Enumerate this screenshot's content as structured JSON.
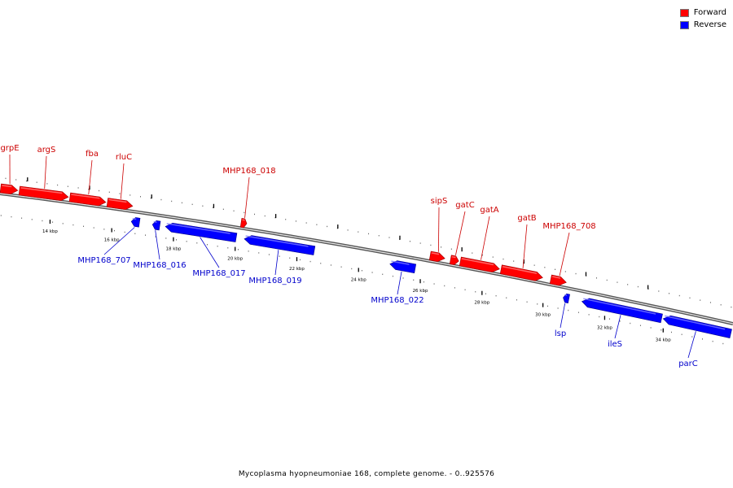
{
  "legend": {
    "forward_label": "Forward",
    "reverse_label": "Reverse",
    "forward_color": "#ff0000",
    "reverse_color": "#0000ff"
  },
  "footer": {
    "caption": "Mycoplasma hyopneumoniae 168, complete genome. - 0..925576"
  },
  "colors": {
    "forward_label": "#cc0000",
    "reverse_label": "#0000cc"
  },
  "map": {
    "kbp_labels": [
      "14 kbp",
      "16 kbp",
      "18 kbp",
      "20 kbp",
      "22 kbp",
      "24 kbp",
      "26 kbp",
      "28 kbp",
      "30 kbp",
      "32 kbp",
      "34 kbp"
    ],
    "forward_genes": [
      "grpE",
      "argS",
      "fba",
      "rluC",
      "MHP168_018",
      "sipS",
      "gatC",
      "gatA",
      "gatB",
      "MHP168_708"
    ],
    "reverse_genes": [
      "MHP168_707",
      "MHP168_016",
      "MHP168_017",
      "MHP168_019",
      "MHP168_022",
      "lsp",
      "ileS",
      "parC"
    ]
  }
}
